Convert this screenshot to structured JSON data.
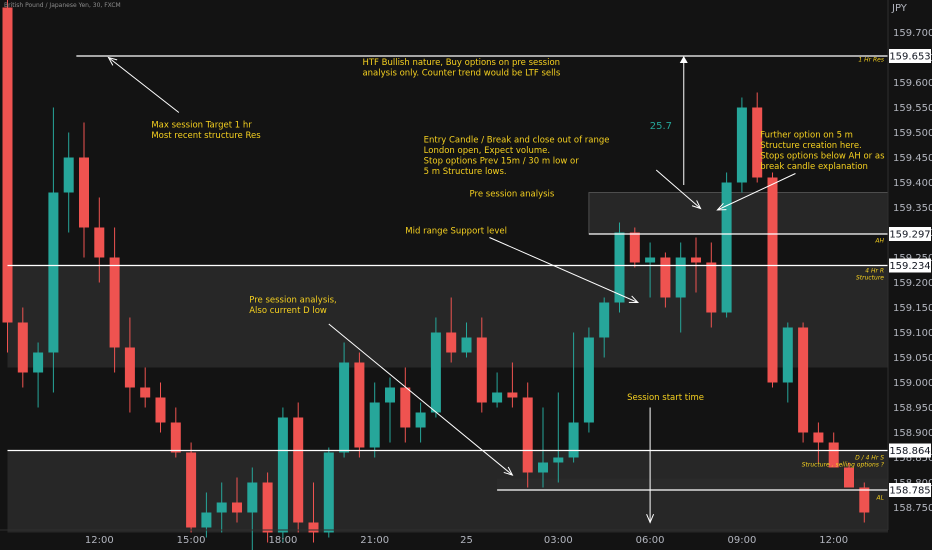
{
  "symbol": "British Pound / Japanese Yen, 30, FXCM",
  "currency": "JPY",
  "colors": {
    "bull": "#26a69a",
    "bear": "#ef5350",
    "annotation": "#f5d020",
    "bg": "#131313",
    "zone": "#2b2b2b",
    "level": "#ffffff",
    "measure": "#26a69a"
  },
  "chart_data": {
    "type": "candlestick",
    "ylim": [
      158.705,
      159.765
    ],
    "yticks": [
      "159.700",
      "159.650",
      "159.600",
      "159.550",
      "159.500",
      "159.450",
      "159.400",
      "159.350",
      "159.300",
      "159.250",
      "159.200",
      "159.150",
      "159.100",
      "159.050",
      "159.000",
      "158.950",
      "158.900",
      "158.850",
      "158.800",
      "158.750"
    ],
    "xlim": [
      0,
      68
    ],
    "xticks": [
      {
        "x": 6,
        "label": "12:00"
      },
      {
        "x": 12,
        "label": "15:00"
      },
      {
        "x": 18,
        "label": "18:00"
      },
      {
        "x": 24,
        "label": "21:00"
      },
      {
        "x": 30,
        "label": "25"
      },
      {
        "x": 36,
        "label": "03:00"
      },
      {
        "x": 42,
        "label": "06:00"
      },
      {
        "x": 48,
        "label": "09:00"
      },
      {
        "x": 54,
        "label": "12:00"
      }
    ],
    "candles": [
      {
        "o": 159.75,
        "h": 159.765,
        "l": 159.06,
        "c": 159.12
      },
      {
        "o": 159.12,
        "h": 159.15,
        "l": 158.99,
        "c": 159.02
      },
      {
        "o": 159.02,
        "h": 159.08,
        "l": 158.95,
        "c": 159.06
      },
      {
        "o": 159.06,
        "h": 159.55,
        "l": 158.98,
        "c": 159.38
      },
      {
        "o": 159.38,
        "h": 159.5,
        "l": 159.3,
        "c": 159.45
      },
      {
        "o": 159.45,
        "h": 159.52,
        "l": 159.25,
        "c": 159.31
      },
      {
        "o": 159.31,
        "h": 159.37,
        "l": 159.2,
        "c": 159.25
      },
      {
        "o": 159.25,
        "h": 159.31,
        "l": 159.02,
        "c": 159.07
      },
      {
        "o": 159.07,
        "h": 159.13,
        "l": 158.94,
        "c": 158.99
      },
      {
        "o": 158.99,
        "h": 159.03,
        "l": 158.95,
        "c": 158.97
      },
      {
        "o": 158.97,
        "h": 159.0,
        "l": 158.9,
        "c": 158.92
      },
      {
        "o": 158.92,
        "h": 158.95,
        "l": 158.85,
        "c": 158.86
      },
      {
        "o": 158.86,
        "h": 158.88,
        "l": 158.7,
        "c": 158.71
      },
      {
        "o": 158.71,
        "h": 158.78,
        "l": 158.69,
        "c": 158.74
      },
      {
        "o": 158.74,
        "h": 158.8,
        "l": 158.7,
        "c": 158.76
      },
      {
        "o": 158.76,
        "h": 158.81,
        "l": 158.72,
        "c": 158.74
      },
      {
        "o": 158.74,
        "h": 158.83,
        "l": 158.65,
        "c": 158.8
      },
      {
        "o": 158.8,
        "h": 158.82,
        "l": 158.68,
        "c": 158.7
      },
      {
        "o": 158.7,
        "h": 158.95,
        "l": 158.68,
        "c": 158.93
      },
      {
        "o": 158.93,
        "h": 158.96,
        "l": 158.7,
        "c": 158.72
      },
      {
        "o": 158.72,
        "h": 158.8,
        "l": 158.68,
        "c": 158.7
      },
      {
        "o": 158.7,
        "h": 158.87,
        "l": 158.69,
        "c": 158.86
      },
      {
        "o": 158.86,
        "h": 159.08,
        "l": 158.85,
        "c": 159.04
      },
      {
        "o": 159.04,
        "h": 159.06,
        "l": 158.85,
        "c": 158.87
      },
      {
        "o": 158.87,
        "h": 159.0,
        "l": 158.85,
        "c": 158.96
      },
      {
        "o": 158.96,
        "h": 159.01,
        "l": 158.88,
        "c": 158.99
      },
      {
        "o": 158.99,
        "h": 159.03,
        "l": 158.88,
        "c": 158.91
      },
      {
        "o": 158.91,
        "h": 158.96,
        "l": 158.88,
        "c": 158.94
      },
      {
        "o": 158.94,
        "h": 159.13,
        "l": 158.93,
        "c": 159.1
      },
      {
        "o": 159.1,
        "h": 159.17,
        "l": 159.04,
        "c": 159.06
      },
      {
        "o": 159.06,
        "h": 159.12,
        "l": 159.05,
        "c": 159.09
      },
      {
        "o": 159.09,
        "h": 159.13,
        "l": 158.94,
        "c": 158.96
      },
      {
        "o": 158.96,
        "h": 159.02,
        "l": 158.95,
        "c": 158.98
      },
      {
        "o": 158.98,
        "h": 159.04,
        "l": 158.95,
        "c": 158.97
      },
      {
        "o": 158.97,
        "h": 159.0,
        "l": 158.79,
        "c": 158.82
      },
      {
        "o": 158.82,
        "h": 158.95,
        "l": 158.79,
        "c": 158.84
      },
      {
        "o": 158.84,
        "h": 158.98,
        "l": 158.8,
        "c": 158.85
      },
      {
        "o": 158.85,
        "h": 159.1,
        "l": 158.84,
        "c": 158.92
      },
      {
        "o": 158.92,
        "h": 159.11,
        "l": 158.9,
        "c": 159.09
      },
      {
        "o": 159.09,
        "h": 159.17,
        "l": 159.05,
        "c": 159.16
      },
      {
        "o": 159.16,
        "h": 159.32,
        "l": 159.14,
        "c": 159.3
      },
      {
        "o": 159.3,
        "h": 159.31,
        "l": 159.23,
        "c": 159.24
      },
      {
        "o": 159.24,
        "h": 159.28,
        "l": 159.17,
        "c": 159.25
      },
      {
        "o": 159.25,
        "h": 159.26,
        "l": 159.15,
        "c": 159.17
      },
      {
        "o": 159.17,
        "h": 159.28,
        "l": 159.1,
        "c": 159.25
      },
      {
        "o": 159.25,
        "h": 159.29,
        "l": 159.18,
        "c": 159.24
      },
      {
        "o": 159.24,
        "h": 159.28,
        "l": 159.11,
        "c": 159.14
      },
      {
        "o": 159.14,
        "h": 159.42,
        "l": 159.13,
        "c": 159.4
      },
      {
        "o": 159.4,
        "h": 159.57,
        "l": 159.38,
        "c": 159.55
      },
      {
        "o": 159.55,
        "h": 159.58,
        "l": 159.4,
        "c": 159.41
      },
      {
        "o": 159.41,
        "h": 159.42,
        "l": 158.99,
        "c": 159.0
      },
      {
        "o": 159.0,
        "h": 159.12,
        "l": 158.96,
        "c": 159.11
      },
      {
        "o": 159.11,
        "h": 159.12,
        "l": 158.88,
        "c": 158.9
      },
      {
        "o": 158.9,
        "h": 158.92,
        "l": 158.84,
        "c": 158.88
      },
      {
        "o": 158.88,
        "h": 158.9,
        "l": 158.83,
        "c": 158.83
      },
      {
        "o": 158.83,
        "h": 158.84,
        "l": 158.79,
        "c": 158.79
      },
      {
        "o": 158.79,
        "h": 158.8,
        "l": 158.72,
        "c": 158.74
      }
    ]
  },
  "zones": [
    {
      "name": "structure-zone",
      "y1": 159.236,
      "y2": 159.03,
      "x1": 0,
      "x2": 68
    },
    {
      "name": "low-zone",
      "y1": 158.864,
      "y2": 158.7,
      "x1": 0,
      "x2": 68
    },
    {
      "name": "ah-zone",
      "y1": 159.38,
      "y2": 159.297,
      "x1": 38,
      "x2": 68
    },
    {
      "name": "al-zone",
      "y1": 158.808,
      "y2": 158.786,
      "x1": 32,
      "x2": 68
    }
  ],
  "levels": [
    {
      "name": "1hr-res-level",
      "price": 159.653,
      "price_label": "159.653",
      "tag": "1 Hr Res",
      "tag_price": 159.648,
      "x1": 4.5
    },
    {
      "name": "ah-level",
      "price": 159.297,
      "price_label": "159.297",
      "tag": "AH",
      "tag_price": 159.286,
      "x1": 38
    },
    {
      "name": "4hr-structure-level",
      "price": 159.234,
      "price_label": "159.234",
      "tag": "4 Hr R",
      "tag2": "Structure",
      "tag_price": 159.226,
      "x1": 0
    },
    {
      "name": "d-4hr-s-level",
      "price": 158.864,
      "price_label": "158.864",
      "tag": "D / 4 Hr S",
      "tag2": "Structure , selling options ?",
      "tag_price": 158.852,
      "x1": 0
    },
    {
      "name": "al-level",
      "price": 158.785,
      "price_label": "158.785",
      "tag": "AL",
      "tag_price": 158.772,
      "x1": 32
    }
  ],
  "annotations": [
    {
      "name": "htf-bullish-note",
      "lines": [
        "HTF Bullish nature, Buy options on pre session",
        "analysis only. Counter trend would be LTF sells"
      ],
      "x": 23.2,
      "y": 159.635
    },
    {
      "name": "max-session-target-note",
      "lines": [
        "Max session Target 1 hr",
        "Most recent structure Res"
      ],
      "x": 9.4,
      "y": 159.51
    },
    {
      "name": "entry-candle-note",
      "lines": [
        "Entry Candle / Break and close out of range",
        "London open, Expect volume.",
        "Stop options Prev 15m / 30 m low or",
        "5 m Structure lows."
      ],
      "x": 27.2,
      "y": 159.48
    },
    {
      "name": "further-option-note",
      "lines": [
        "Further option on 5 m",
        "Structure creation here.",
        "Stops options below AH or as",
        "break candle explanation"
      ],
      "x": 49.2,
      "y": 159.49
    },
    {
      "name": "pre-session-note",
      "lines": [
        "Pre session analysis"
      ],
      "x": 30.2,
      "y": 159.372
    },
    {
      "name": "mid-range-note",
      "lines": [
        "Mid range Support level"
      ],
      "x": 26.0,
      "y": 159.298
    },
    {
      "name": "pre-session-low-note",
      "lines": [
        "Pre session analysis,",
        "Also current D low"
      ],
      "x": 15.8,
      "y": 159.16
    },
    {
      "name": "session-start-note",
      "lines": [
        "Session start time"
      ],
      "x": 40.5,
      "y": 158.965
    }
  ],
  "measure": {
    "label": "25.7",
    "x": 44.2,
    "label_price": 159.515,
    "from": 159.395,
    "to": 159.653
  },
  "arrows": [
    {
      "name": "target-arrow",
      "x1": 11.2,
      "y1": 159.54,
      "x2": 6.6,
      "y2": 159.65
    },
    {
      "name": "entry-arrow",
      "x1": 42.4,
      "y1": 159.425,
      "x2": 45.3,
      "y2": 159.348
    },
    {
      "name": "further-arrow",
      "x1": 51.5,
      "y1": 159.418,
      "x2": 46.4,
      "y2": 159.345
    },
    {
      "name": "mid-range-arrow",
      "x1": 31.5,
      "y1": 159.29,
      "x2": 41.2,
      "y2": 159.16
    },
    {
      "name": "pre-session-low-arrow",
      "x1": 21.0,
      "y1": 159.117,
      "x2": 33.0,
      "y2": 158.815
    },
    {
      "name": "session-start-arrow",
      "x1": 42.0,
      "y1": 158.95,
      "x2": 42.0,
      "y2": 158.72
    }
  ]
}
